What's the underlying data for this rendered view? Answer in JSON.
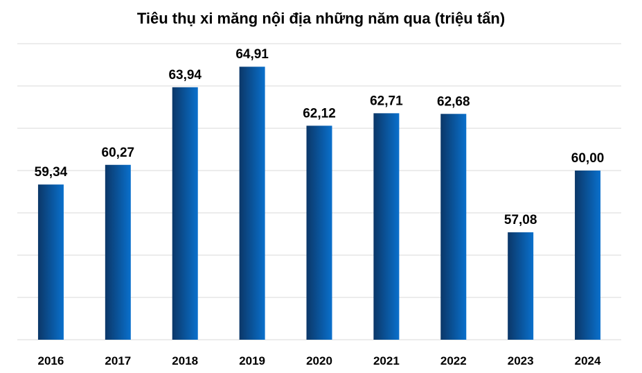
{
  "chart_data": {
    "type": "bar",
    "title": "Tiêu thụ xi măng nội địa những năm qua (triệu tấn)",
    "categories": [
      "2016",
      "2017",
      "2018",
      "2019",
      "2020",
      "2021",
      "2022",
      "2023",
      "2024"
    ],
    "values": [
      59.34,
      60.27,
      63.94,
      64.91,
      62.12,
      62.71,
      62.68,
      57.08,
      60.0
    ],
    "data_labels": [
      "59,34",
      "60,27",
      "63,94",
      "64,91",
      "62,12",
      "62,71",
      "62,68",
      "57,08",
      "60,00"
    ],
    "xlabel": "",
    "ylabel": "",
    "ylim": [
      52,
      66
    ],
    "grid": true,
    "bar_color_dark": "#0b3768",
    "bar_color_light": "#0a70cc",
    "grid_color": "#d9d9d9"
  }
}
